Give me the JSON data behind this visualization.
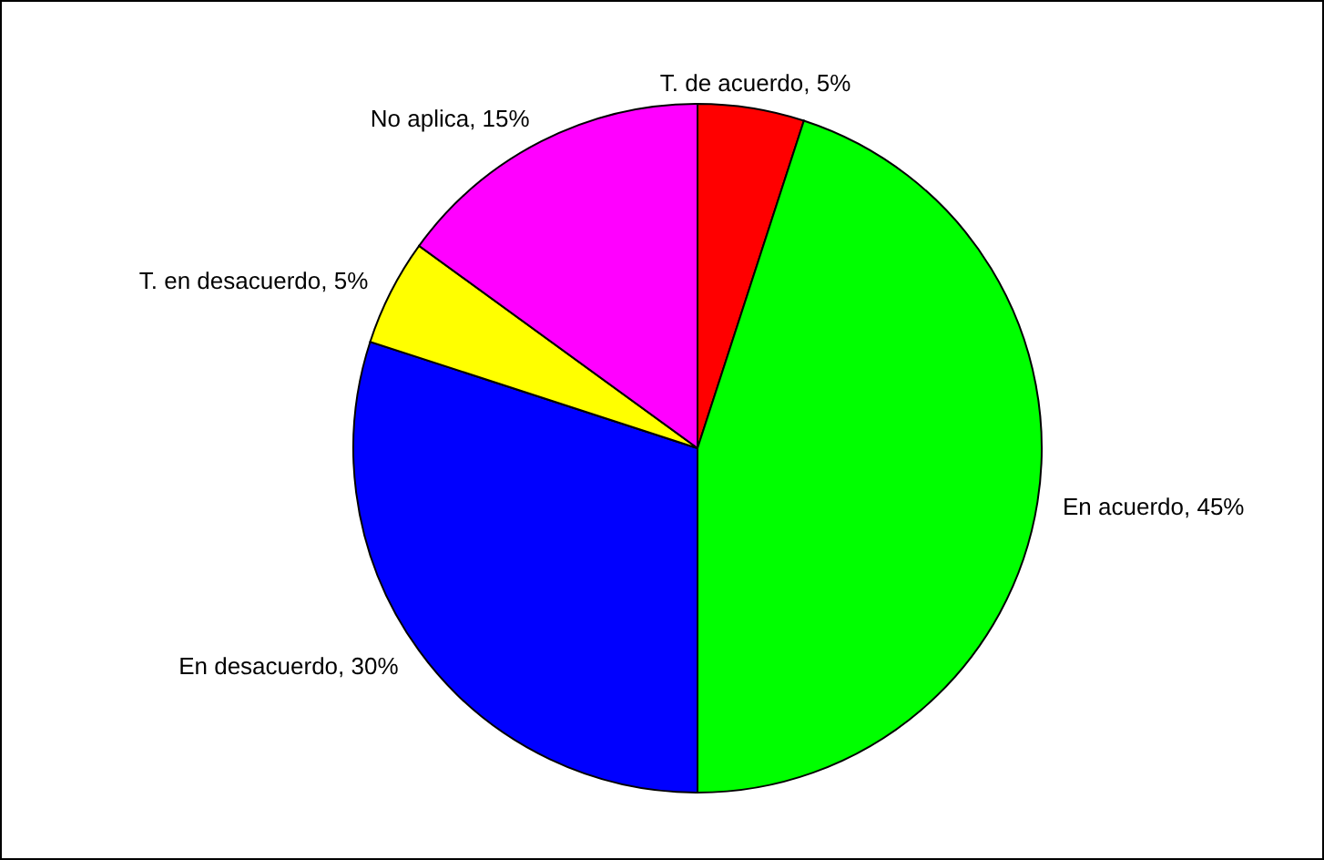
{
  "chart_data": {
    "type": "pie",
    "categories": [
      "T. de acuerdo",
      "En acuerdo",
      "En desacuerdo",
      "T. en desacuerdo",
      "No aplica"
    ],
    "values": [
      5,
      45,
      30,
      5,
      15
    ],
    "colors": [
      "#ff0000",
      "#00ff00",
      "#0000ff",
      "#ffff00",
      "#ff00ff"
    ],
    "value_labels": [
      "5%",
      "45%",
      "30%",
      "5%",
      "15%"
    ]
  }
}
